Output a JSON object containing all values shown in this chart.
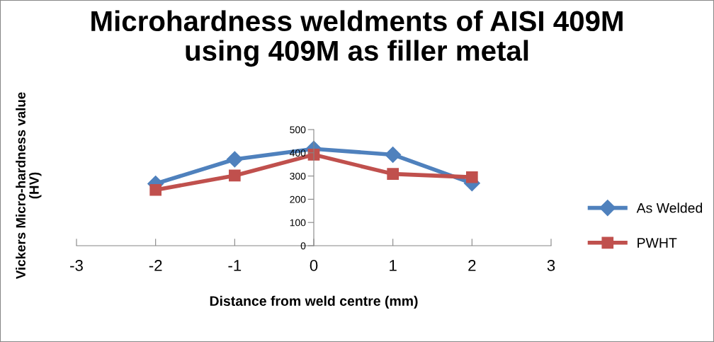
{
  "chart_data": {
    "type": "line",
    "title": "Microhardness weldments of AISI 409M\nusing 409M as filler metal",
    "xlabel": "Distance from weld centre (mm)",
    "ylabel": "Vickers Micro-hardness value\n(HV)",
    "x": [
      -2,
      -1,
      0,
      1,
      2
    ],
    "series": [
      {
        "name": "As Welded",
        "color": "#4f81bd",
        "values": [
          267,
          372,
          417,
          392,
          269
        ],
        "marker": "diamond"
      },
      {
        "name": "PWHT",
        "color": "#c0504d",
        "values": [
          240,
          302,
          392,
          309,
          295
        ],
        "marker": "square"
      }
    ],
    "xlim": [
      -3,
      3
    ],
    "xticks": [
      -3,
      -2,
      -1,
      0,
      1,
      2,
      3
    ],
    "ylim": [
      0,
      500
    ],
    "yticks": [
      0,
      100,
      200,
      300,
      400,
      500
    ],
    "grid": false,
    "legend": "right",
    "line_style": "solid"
  }
}
